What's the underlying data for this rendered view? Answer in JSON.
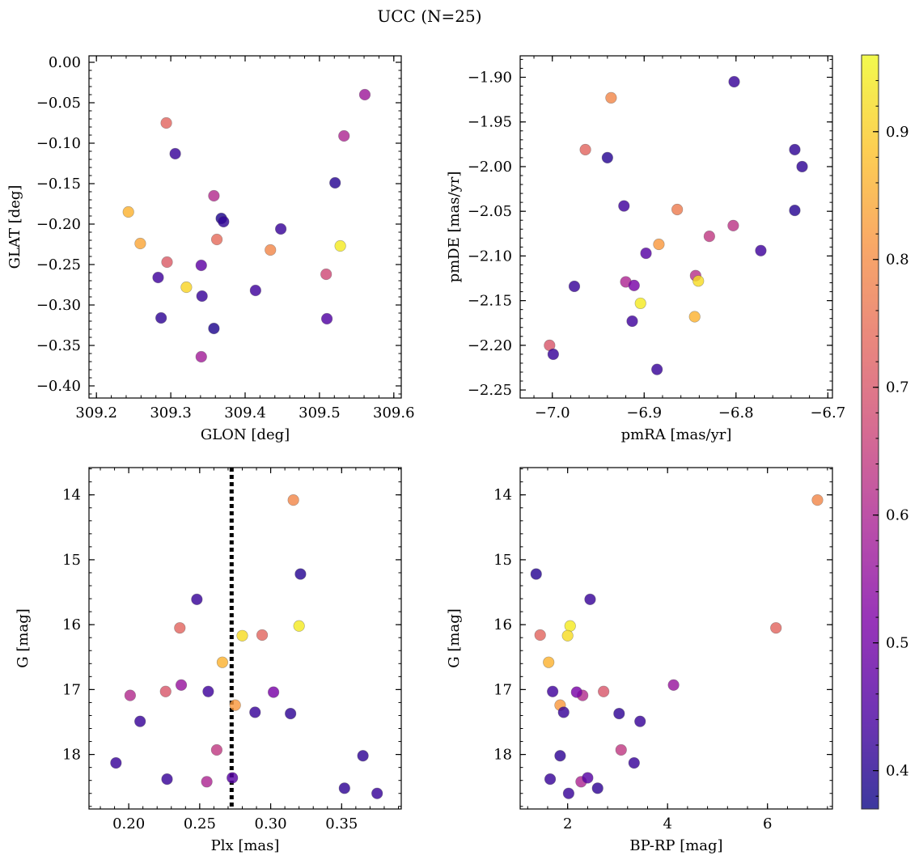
{
  "title": "UCC (N=25)",
  "colorbar": {
    "range": [
      0.37,
      0.96
    ],
    "ticks": [
      0.4,
      0.5,
      0.6,
      0.7,
      0.8,
      0.9
    ],
    "colormap": "plasma"
  },
  "chart_data": [
    {
      "type": "scatter",
      "xlabel": "GLON [deg]",
      "ylabel": "GLAT [deg]",
      "xlim": [
        309.19,
        309.61
      ],
      "ylim": [
        -0.415,
        0.008
      ],
      "xticks": [
        309.2,
        309.3,
        309.4,
        309.5,
        309.6
      ],
      "yticks": [
        0.0,
        -0.05,
        -0.1,
        -0.15,
        -0.2,
        -0.25,
        -0.3,
        -0.35,
        -0.4
      ],
      "ydecimals": 2,
      "xdecimals": 1,
      "points": [
        {
          "x": 309.561,
          "y": -0.04,
          "c": 0.57
        },
        {
          "x": 309.294,
          "y": -0.075,
          "c": 0.73
        },
        {
          "x": 309.533,
          "y": -0.091,
          "c": 0.6
        },
        {
          "x": 309.306,
          "y": -0.113,
          "c": 0.42
        },
        {
          "x": 309.521,
          "y": -0.149,
          "c": 0.4
        },
        {
          "x": 309.358,
          "y": -0.165,
          "c": 0.61
        },
        {
          "x": 309.243,
          "y": -0.185,
          "c": 0.86
        },
        {
          "x": 309.368,
          "y": -0.193,
          "c": 0.39
        },
        {
          "x": 309.371,
          "y": -0.197,
          "c": 0.41
        },
        {
          "x": 309.448,
          "y": -0.206,
          "c": 0.42
        },
        {
          "x": 309.362,
          "y": -0.219,
          "c": 0.74
        },
        {
          "x": 309.259,
          "y": -0.224,
          "c": 0.84
        },
        {
          "x": 309.528,
          "y": -0.227,
          "c": 0.94
        },
        {
          "x": 309.434,
          "y": -0.232,
          "c": 0.79
        },
        {
          "x": 309.295,
          "y": -0.247,
          "c": 0.71
        },
        {
          "x": 309.341,
          "y": -0.251,
          "c": 0.47
        },
        {
          "x": 309.509,
          "y": -0.262,
          "c": 0.67
        },
        {
          "x": 309.283,
          "y": -0.266,
          "c": 0.43
        },
        {
          "x": 309.321,
          "y": -0.278,
          "c": 0.91
        },
        {
          "x": 309.414,
          "y": -0.282,
          "c": 0.43
        },
        {
          "x": 309.342,
          "y": -0.289,
          "c": 0.42
        },
        {
          "x": 309.287,
          "y": -0.316,
          "c": 0.41
        },
        {
          "x": 309.51,
          "y": -0.317,
          "c": 0.45
        },
        {
          "x": 309.358,
          "y": -0.329,
          "c": 0.39
        },
        {
          "x": 309.341,
          "y": -0.364,
          "c": 0.58
        }
      ]
    },
    {
      "type": "scatter",
      "xlabel": "pmRA [mas/yr]",
      "ylabel": "pmDE [mas/yr]",
      "xlim": [
        -7.035,
        -6.695
      ],
      "ylim": [
        -2.259,
        -1.876
      ],
      "xticks": [
        -7.0,
        -6.9,
        -6.8,
        -6.7
      ],
      "yticks": [
        -1.9,
        -1.95,
        -2.0,
        -2.05,
        -2.1,
        -2.15,
        -2.2,
        -2.25
      ],
      "ydecimals": 2,
      "xdecimals": 1,
      "points": [
        {
          "x": -6.802,
          "y": -1.905,
          "c": 0.42
        },
        {
          "x": -6.936,
          "y": -1.923,
          "c": 0.79
        },
        {
          "x": -6.964,
          "y": -1.981,
          "c": 0.73
        },
        {
          "x": -6.736,
          "y": -1.981,
          "c": 0.41
        },
        {
          "x": -6.94,
          "y": -1.99,
          "c": 0.4
        },
        {
          "x": -6.728,
          "y": -2.0,
          "c": 0.41
        },
        {
          "x": -6.922,
          "y": -2.044,
          "c": 0.43
        },
        {
          "x": -6.864,
          "y": -2.048,
          "c": 0.77
        },
        {
          "x": -6.736,
          "y": -2.049,
          "c": 0.4
        },
        {
          "x": -6.803,
          "y": -2.066,
          "c": 0.63
        },
        {
          "x": -6.829,
          "y": -2.078,
          "c": 0.64
        },
        {
          "x": -6.884,
          "y": -2.087,
          "c": 0.82
        },
        {
          "x": -6.773,
          "y": -2.094,
          "c": 0.43
        },
        {
          "x": -6.898,
          "y": -2.097,
          "c": 0.46
        },
        {
          "x": -6.844,
          "y": -2.122,
          "c": 0.62
        },
        {
          "x": -6.841,
          "y": -2.128,
          "c": 0.92
        },
        {
          "x": -6.92,
          "y": -2.129,
          "c": 0.6
        },
        {
          "x": -6.911,
          "y": -2.133,
          "c": 0.51
        },
        {
          "x": -6.976,
          "y": -2.134,
          "c": 0.42
        },
        {
          "x": -6.904,
          "y": -2.153,
          "c": 0.94
        },
        {
          "x": -6.845,
          "y": -2.168,
          "c": 0.86
        },
        {
          "x": -6.913,
          "y": -2.173,
          "c": 0.43
        },
        {
          "x": -7.003,
          "y": -2.2,
          "c": 0.7
        },
        {
          "x": -6.999,
          "y": -2.21,
          "c": 0.42
        },
        {
          "x": -6.886,
          "y": -2.227,
          "c": 0.42
        }
      ]
    },
    {
      "type": "scatter",
      "xlabel": "Plx [mas]",
      "ylabel": "G [mag]",
      "xlim": [
        0.172,
        0.392
      ],
      "ylim": [
        18.84,
        13.58
      ],
      "inverted_y": true,
      "xticks": [
        0.2,
        0.25,
        0.3,
        0.35
      ],
      "yticks": [
        14,
        15,
        16,
        17,
        18
      ],
      "xdecimals": 2,
      "ydecimals": 0,
      "vline": {
        "x": 0.2725,
        "style": "dotted"
      },
      "points": [
        {
          "x": 0.316,
          "y": 14.08,
          "c": 0.79
        },
        {
          "x": 0.321,
          "y": 15.22,
          "c": 0.4
        },
        {
          "x": 0.248,
          "y": 15.61,
          "c": 0.42
        },
        {
          "x": 0.236,
          "y": 16.05,
          "c": 0.73
        },
        {
          "x": 0.32,
          "y": 16.02,
          "c": 0.94
        },
        {
          "x": 0.28,
          "y": 16.17,
          "c": 0.92
        },
        {
          "x": 0.294,
          "y": 16.16,
          "c": 0.73
        },
        {
          "x": 0.266,
          "y": 16.58,
          "c": 0.86
        },
        {
          "x": 0.237,
          "y": 16.93,
          "c": 0.56
        },
        {
          "x": 0.201,
          "y": 17.09,
          "c": 0.61
        },
        {
          "x": 0.226,
          "y": 17.03,
          "c": 0.7
        },
        {
          "x": 0.256,
          "y": 17.03,
          "c": 0.43
        },
        {
          "x": 0.302,
          "y": 17.04,
          "c": 0.51
        },
        {
          "x": 0.275,
          "y": 17.24,
          "c": 0.82
        },
        {
          "x": 0.208,
          "y": 17.49,
          "c": 0.42
        },
        {
          "x": 0.289,
          "y": 17.35,
          "c": 0.42
        },
        {
          "x": 0.314,
          "y": 17.37,
          "c": 0.41
        },
        {
          "x": 0.262,
          "y": 17.93,
          "c": 0.64
        },
        {
          "x": 0.191,
          "y": 18.13,
          "c": 0.42
        },
        {
          "x": 0.365,
          "y": 18.02,
          "c": 0.41
        },
        {
          "x": 0.227,
          "y": 18.38,
          "c": 0.42
        },
        {
          "x": 0.255,
          "y": 18.42,
          "c": 0.6
        },
        {
          "x": 0.273,
          "y": 18.36,
          "c": 0.46
        },
        {
          "x": 0.352,
          "y": 18.52,
          "c": 0.41
        },
        {
          "x": 0.375,
          "y": 18.6,
          "c": 0.42
        }
      ]
    },
    {
      "type": "scatter",
      "xlabel": "BP-RP [mag]",
      "ylabel": "G [mag]",
      "xlim": [
        1.05,
        7.3
      ],
      "ylim": [
        18.84,
        13.58
      ],
      "inverted_y": true,
      "xticks": [
        2,
        4,
        6
      ],
      "yticks": [
        14,
        15,
        16,
        17,
        18
      ],
      "xdecimals": 0,
      "ydecimals": 0,
      "points": [
        {
          "x": 7.0,
          "y": 14.08,
          "c": 0.79
        },
        {
          "x": 1.37,
          "y": 15.22,
          "c": 0.4
        },
        {
          "x": 2.45,
          "y": 15.61,
          "c": 0.42
        },
        {
          "x": 6.17,
          "y": 16.05,
          "c": 0.73
        },
        {
          "x": 2.05,
          "y": 16.02,
          "c": 0.94
        },
        {
          "x": 2.0,
          "y": 16.17,
          "c": 0.92
        },
        {
          "x": 1.45,
          "y": 16.16,
          "c": 0.73
        },
        {
          "x": 1.62,
          "y": 16.58,
          "c": 0.86
        },
        {
          "x": 4.12,
          "y": 16.93,
          "c": 0.56
        },
        {
          "x": 2.3,
          "y": 17.09,
          "c": 0.61
        },
        {
          "x": 2.72,
          "y": 17.03,
          "c": 0.7
        },
        {
          "x": 1.7,
          "y": 17.03,
          "c": 0.43
        },
        {
          "x": 2.18,
          "y": 17.04,
          "c": 0.51
        },
        {
          "x": 1.85,
          "y": 17.24,
          "c": 0.82
        },
        {
          "x": 3.45,
          "y": 17.49,
          "c": 0.42
        },
        {
          "x": 1.92,
          "y": 17.35,
          "c": 0.42
        },
        {
          "x": 3.03,
          "y": 17.37,
          "c": 0.41
        },
        {
          "x": 3.07,
          "y": 17.93,
          "c": 0.64
        },
        {
          "x": 3.33,
          "y": 18.13,
          "c": 0.42
        },
        {
          "x": 1.85,
          "y": 18.02,
          "c": 0.41
        },
        {
          "x": 1.65,
          "y": 18.38,
          "c": 0.42
        },
        {
          "x": 2.27,
          "y": 18.42,
          "c": 0.6
        },
        {
          "x": 2.4,
          "y": 18.36,
          "c": 0.46
        },
        {
          "x": 2.6,
          "y": 18.52,
          "c": 0.41
        },
        {
          "x": 2.02,
          "y": 18.6,
          "c": 0.42
        }
      ]
    }
  ]
}
